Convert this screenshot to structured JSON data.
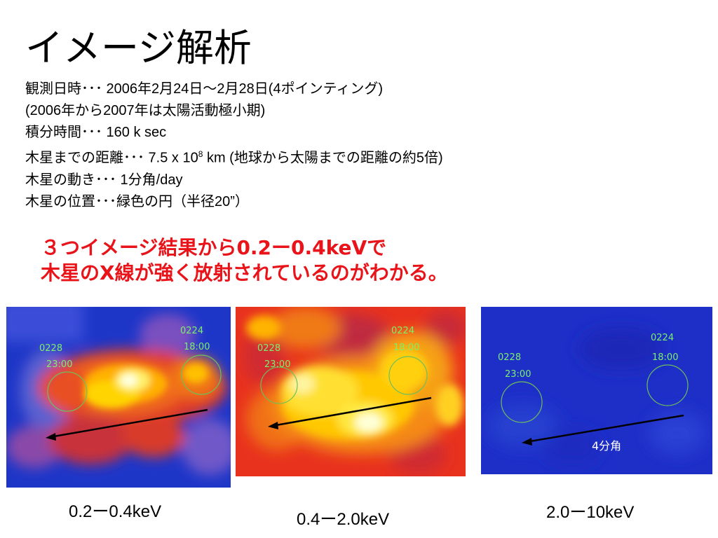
{
  "title": "イメージ解析",
  "info": {
    "line1": "観測日時･･･ 2006年2月24日～2月28日(4ポインティング)",
    "line2": "(2006年から2007年は太陽活動極小期)",
    "line3": "積分時間･･･ 160 k sec",
    "line4_pre": "木星までの距離･･･ 7.5 x 10",
    "line4_sup": "8",
    "line4_post": " km (地球から太陽までの距離の約5倍)",
    "line5": "木星の動き･･･ 1分角/day",
    "line6": "木星の位置･･･緑色の円（半径20”）"
  },
  "highlight": {
    "line1": "３つイメージ結果から0.2ー0.4keVで",
    "line2": "木星のX線が強く放射されているのがわかる。",
    "color": "#e8141a"
  },
  "panels": [
    {
      "caption": "0.2ー0.4keV",
      "label_left_date": "0228",
      "label_left_time": "23:00",
      "label_right_date": "0224",
      "label_right_time": "18:00"
    },
    {
      "caption": "0.4ー2.0keV",
      "label_left_date": "0228",
      "label_left_time": "23:00",
      "label_right_date": "0224",
      "label_right_time": "18:00"
    },
    {
      "caption": "2.0ー10keV",
      "label_left_date": "0228",
      "label_left_time": "23:00",
      "label_right_date": "0224",
      "label_right_time": "18:00",
      "scale_label": "4分角"
    }
  ],
  "colors": {
    "circle": "#7cf06a",
    "arrow": "#000000",
    "panel3_bg": "#1e2fc8"
  }
}
